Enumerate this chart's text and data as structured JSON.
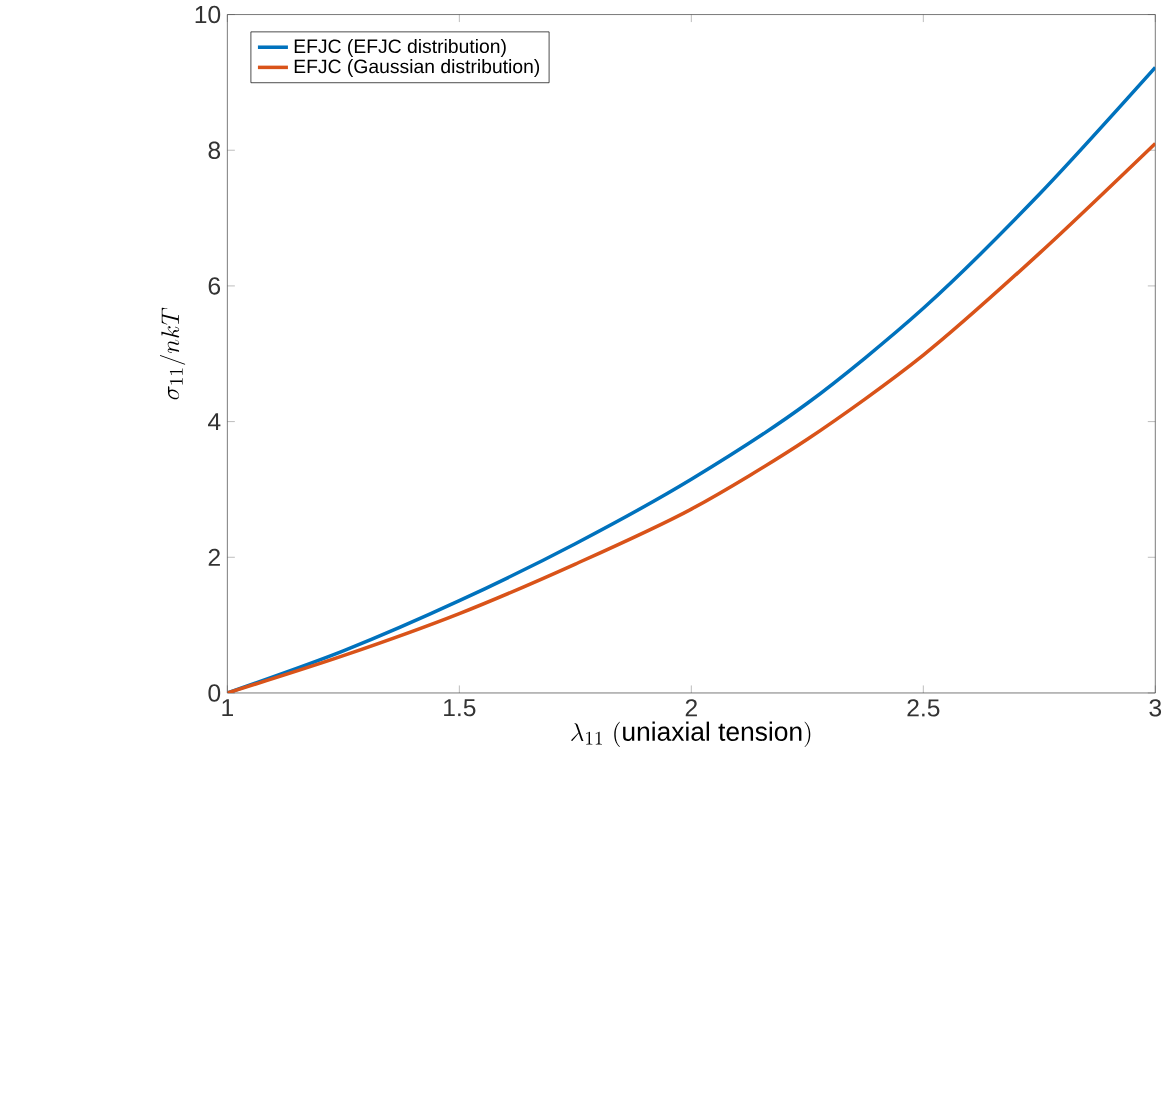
{
  "chart_data": {
    "type": "line",
    "xlabel": "\\lambda_{11}\\ \\mathrm{(uniaxial\\ tension)}",
    "ylabel": "\\sigma_{11}/nkT",
    "x": [
      1.0,
      1.25,
      1.5,
      1.75,
      2.0,
      2.25,
      2.5,
      2.75,
      3.0
    ],
    "series": [
      {
        "name": "EFJC (EFJC distribution)",
        "color": "#0072bd",
        "values": [
          0,
          0.62,
          1.36,
          2.2,
          3.15,
          4.27,
          5.67,
          7.35,
          9.22
        ]
      },
      {
        "name": "EFJC (Gaussian distribution)",
        "color": "#d95319",
        "values": [
          0,
          0.55,
          1.17,
          1.9,
          2.71,
          3.74,
          4.98,
          6.48,
          8.1
        ]
      }
    ],
    "xlim": [
      1,
      3
    ],
    "ylim": [
      0,
      10
    ],
    "xticks": [
      1,
      1.5,
      2,
      2.5,
      3
    ],
    "yticks": [
      0,
      2,
      4,
      6,
      8,
      10
    ],
    "grid": false,
    "legend": "top left",
    "marker": "none",
    "line_style": "solid"
  }
}
